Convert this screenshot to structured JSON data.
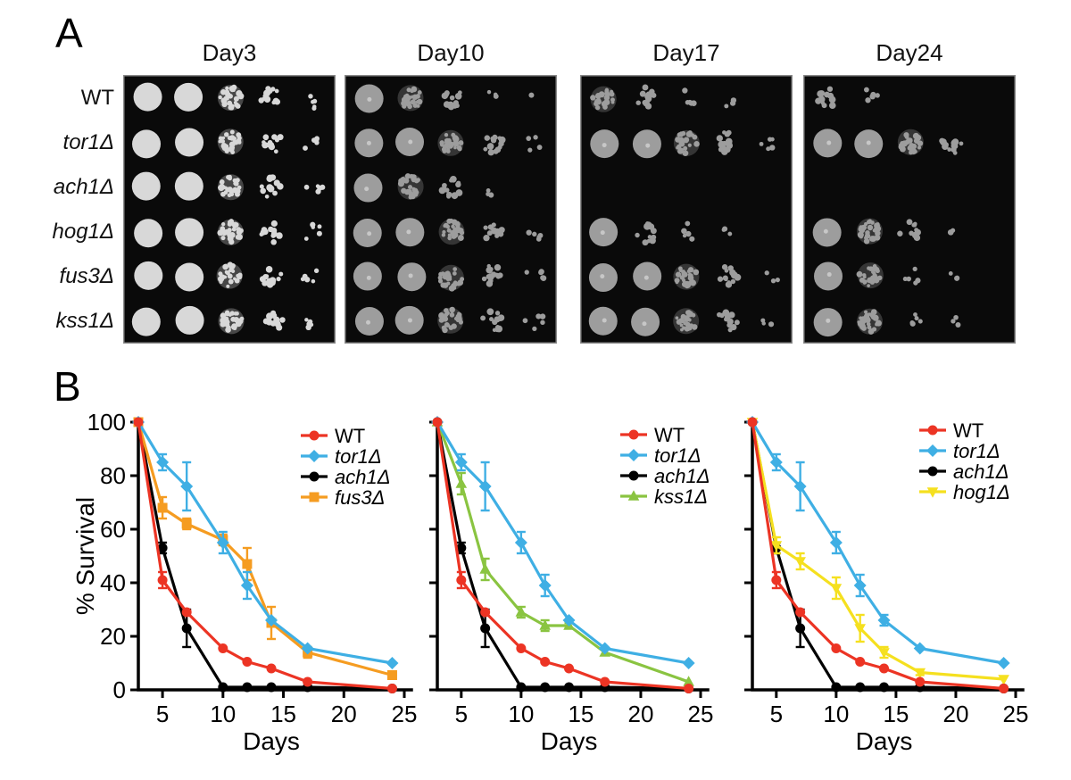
{
  "panel_a": {
    "label": "A",
    "column_titles": [
      "Day3",
      "Day10",
      "Day17",
      "Day24"
    ],
    "row_labels": [
      {
        "text": "WT",
        "italic": false
      },
      {
        "text": "tor1Δ",
        "italic": true
      },
      {
        "text": "ach1Δ",
        "italic": true
      },
      {
        "text": "hog1Δ",
        "italic": true
      },
      {
        "text": "fus3Δ",
        "italic": true
      },
      {
        "text": "kss1Δ",
        "italic": true
      }
    ],
    "colors": {
      "day3_spot": "#d8d8d8",
      "late_spot": "#9d9d9d",
      "background": "#0a0a0a",
      "border": "#8a8a8a"
    },
    "panels": [
      {
        "title": "Day3",
        "sheen": false,
        "spot_rows": [
          [
            "full",
            "full",
            "speck",
            "clus",
            "dots"
          ],
          [
            "full",
            "full",
            "speck",
            "clus",
            "dots"
          ],
          [
            "full",
            "full",
            "speck",
            "clus",
            "dots"
          ],
          [
            "full",
            "full",
            "speck",
            "clus",
            "dots"
          ],
          [
            "full",
            "full",
            "speck",
            "clus",
            "dots"
          ],
          [
            "full",
            "full",
            "speck",
            "clus",
            "dots"
          ]
        ]
      },
      {
        "title": "Day10",
        "sheen": true,
        "spot_rows": [
          [
            "full",
            "speck",
            "clus",
            "fewdots",
            "dot"
          ],
          [
            "full",
            "full",
            "speck",
            "clus",
            "dots"
          ],
          [
            "full",
            "speck",
            "clus",
            "fewdots",
            "none"
          ],
          [
            "full",
            "full",
            "speck",
            "clus",
            "dots"
          ],
          [
            "full",
            "full",
            "speck",
            "clus",
            "dots"
          ],
          [
            "full",
            "full",
            "speck",
            "clus",
            "dots"
          ]
        ]
      },
      {
        "title": "Day17",
        "sheen": true,
        "spot_rows": [
          [
            "speck",
            "clus",
            "dots",
            "fewdots",
            "none"
          ],
          [
            "full",
            "full",
            "speck",
            "clus",
            "dots"
          ],
          [
            "none",
            "none",
            "none",
            "none",
            "none"
          ],
          [
            "full",
            "clus",
            "dots",
            "fewdots",
            "none"
          ],
          [
            "full",
            "full",
            "speck",
            "clus",
            "fewdots"
          ],
          [
            "full",
            "full",
            "speck",
            "clus",
            "fewdots"
          ]
        ]
      },
      {
        "title": "Day24",
        "sheen": true,
        "spot_rows": [
          [
            "clus",
            "dots",
            "none",
            "none",
            "none"
          ],
          [
            "full",
            "full",
            "speck",
            "clus",
            "none"
          ],
          [
            "none",
            "none",
            "none",
            "none",
            "none"
          ],
          [
            "full",
            "speck",
            "clus",
            "fewdots",
            "none"
          ],
          [
            "full",
            "speck",
            "dots",
            "fewdots",
            "none"
          ],
          [
            "full",
            "speck",
            "dots",
            "fewdots",
            "none"
          ]
        ]
      }
    ]
  },
  "panel_b": {
    "label": "B"
  },
  "chart_data": [
    {
      "type": "line",
      "title": "",
      "xlabel": "Days",
      "ylabel": "% Survival",
      "show_y_tick_labels": true,
      "x": [
        3,
        5,
        7,
        10,
        12,
        14,
        17,
        24
      ],
      "xticks": [
        5,
        10,
        15,
        20,
        25
      ],
      "yticks": [
        0,
        20,
        40,
        60,
        80,
        100
      ],
      "xlim": [
        3,
        25
      ],
      "ylim": [
        0,
        100
      ],
      "grid": false,
      "legend_position": "upper right",
      "series": [
        {
          "name": "WT",
          "italic": false,
          "color": "#EC3424",
          "marker": "circle",
          "values": [
            100,
            41,
            29,
            15.5,
            10.5,
            8,
            3,
            0.5
          ],
          "errors": [
            0,
            3,
            0,
            0,
            0,
            0,
            0,
            0
          ]
        },
        {
          "name": "tor1Δ",
          "italic": true,
          "color": "#3FAFE4",
          "marker": "diamond",
          "values": [
            100,
            85,
            76,
            55,
            39,
            26,
            15.5,
            10
          ],
          "errors": [
            0,
            3,
            9,
            4,
            5,
            0,
            0,
            0
          ]
        },
        {
          "name": "ach1Δ",
          "italic": true,
          "color": "#000000",
          "marker": "circle",
          "values": [
            100,
            53,
            23,
            1,
            1,
            1,
            1,
            0.5
          ],
          "errors": [
            0,
            2,
            7,
            0,
            0,
            0,
            0,
            0
          ]
        },
        {
          "name": "fus3Δ",
          "italic": true,
          "color": "#F59C21",
          "marker": "square",
          "values": [
            100,
            68,
            62,
            56,
            47,
            25,
            14,
            5.5
          ],
          "errors": [
            0,
            4,
            2,
            2,
            6,
            6,
            2,
            0
          ]
        }
      ]
    },
    {
      "type": "line",
      "title": "",
      "xlabel": "Days",
      "ylabel": "",
      "show_y_tick_labels": false,
      "x": [
        3,
        5,
        7,
        10,
        12,
        14,
        17,
        24
      ],
      "xticks": [
        5,
        10,
        15,
        20,
        25
      ],
      "yticks": [
        0,
        20,
        40,
        60,
        80,
        100
      ],
      "xlim": [
        3,
        25
      ],
      "ylim": [
        0,
        100
      ],
      "grid": false,
      "legend_position": "upper right",
      "series": [
        {
          "name": "WT",
          "italic": false,
          "color": "#EC3424",
          "marker": "circle",
          "values": [
            100,
            41,
            29,
            15.5,
            10.5,
            8,
            3,
            0.5
          ],
          "errors": [
            0,
            3,
            0,
            0,
            0,
            0,
            0,
            0
          ]
        },
        {
          "name": "tor1Δ",
          "italic": true,
          "color": "#3FAFE4",
          "marker": "diamond",
          "values": [
            100,
            85,
            76,
            55,
            39,
            26,
            15.5,
            10
          ],
          "errors": [
            0,
            3,
            9,
            4,
            4,
            0,
            0,
            0
          ]
        },
        {
          "name": "ach1Δ",
          "italic": true,
          "color": "#000000",
          "marker": "circle",
          "values": [
            100,
            53,
            23,
            1,
            1,
            1,
            1,
            0.5
          ],
          "errors": [
            0,
            2,
            7,
            0,
            0,
            0,
            0,
            0
          ]
        },
        {
          "name": "kss1Δ",
          "italic": true,
          "color": "#8AC441",
          "marker": "triangle-up",
          "values": [
            100,
            77,
            45,
            29,
            24,
            24,
            14,
            3
          ],
          "errors": [
            0,
            4,
            4,
            2,
            2,
            1,
            0,
            0
          ]
        }
      ]
    },
    {
      "type": "line",
      "title": "",
      "xlabel": "Days",
      "ylabel": "",
      "show_y_tick_labels": false,
      "x": [
        3,
        5,
        7,
        10,
        12,
        14,
        17,
        24
      ],
      "xticks": [
        5,
        10,
        15,
        20,
        25
      ],
      "yticks": [
        0,
        20,
        40,
        60,
        80,
        100
      ],
      "xlim": [
        3,
        25
      ],
      "ylim": [
        0,
        100
      ],
      "grid": false,
      "legend_position": "upper right",
      "series": [
        {
          "name": "WT",
          "italic": false,
          "color": "#EC3424",
          "marker": "circle",
          "values": [
            100,
            41,
            29,
            15.5,
            10.5,
            8,
            3,
            0.5
          ],
          "errors": [
            0,
            3,
            0,
            0,
            0,
            0,
            0,
            0
          ]
        },
        {
          "name": "tor1Δ",
          "italic": true,
          "color": "#3FAFE4",
          "marker": "diamond",
          "values": [
            100,
            85,
            76,
            55,
            39,
            26,
            15.5,
            10
          ],
          "errors": [
            0,
            3,
            9,
            4,
            4,
            2,
            0,
            0
          ]
        },
        {
          "name": "ach1Δ",
          "italic": true,
          "color": "#000000",
          "marker": "circle",
          "values": [
            100,
            53,
            23,
            1,
            1,
            1,
            1,
            0.5
          ],
          "errors": [
            0,
            2,
            7,
            0,
            0,
            0,
            0,
            0
          ]
        },
        {
          "name": "hog1Δ",
          "italic": true,
          "color": "#F5E01F",
          "marker": "triangle-down",
          "values": [
            100,
            54,
            48,
            38,
            23,
            14,
            6.5,
            4
          ],
          "errors": [
            0,
            3,
            3,
            4,
            5,
            2,
            1,
            0
          ]
        }
      ]
    }
  ]
}
